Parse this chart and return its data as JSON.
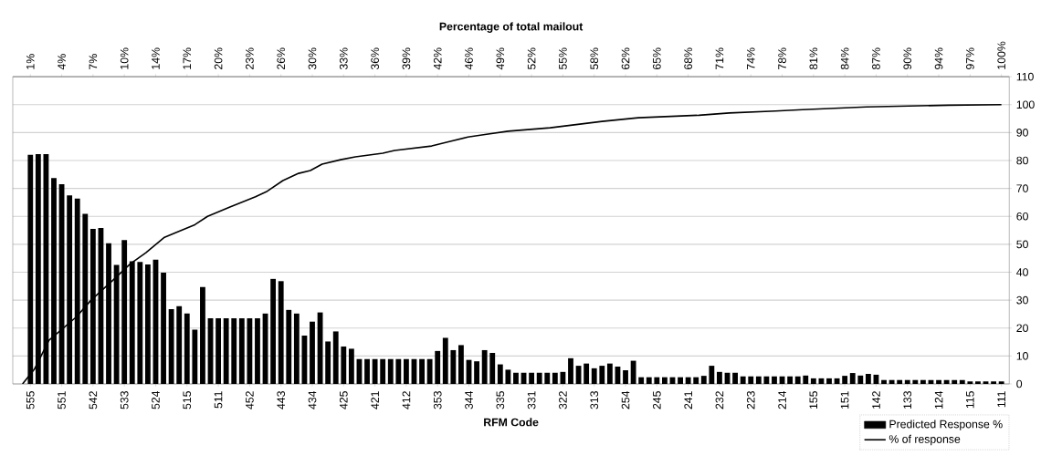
{
  "chart_data": {
    "type": "bar",
    "xlabel": "RFM Code",
    "x2label": "Percentage of total mailout",
    "categories": [
      "555",
      null,
      null,
      null,
      "551",
      null,
      null,
      null,
      "542",
      null,
      null,
      null,
      "533",
      null,
      null,
      null,
      "524",
      null,
      null,
      null,
      "515",
      null,
      null,
      null,
      "511",
      null,
      null,
      null,
      "452",
      null,
      null,
      null,
      "443",
      null,
      null,
      null,
      "434",
      null,
      null,
      null,
      "425",
      null,
      null,
      null,
      "421",
      null,
      null,
      null,
      "412",
      null,
      null,
      null,
      "353",
      null,
      null,
      null,
      "344",
      null,
      null,
      null,
      "335",
      null,
      null,
      null,
      "331",
      null,
      null,
      null,
      "322",
      null,
      null,
      null,
      "313",
      null,
      null,
      null,
      "254",
      null,
      null,
      null,
      "245",
      null,
      null,
      null,
      "241",
      null,
      null,
      null,
      "232",
      null,
      null,
      null,
      "223",
      null,
      null,
      null,
      "214",
      null,
      null,
      null,
      "155",
      null,
      null,
      null,
      "151",
      null,
      null,
      null,
      "142",
      null,
      null,
      null,
      "133",
      null,
      null,
      null,
      "124",
      null,
      null,
      null,
      "115",
      null,
      null,
      null,
      "111"
    ],
    "series": [
      {
        "name": "Predicted Response %",
        "color": "#000000",
        "values": [
          82,
          82.3,
          82.3,
          73.7,
          71.5,
          67.5,
          66.4,
          60.9,
          55.5,
          55.8,
          50.4,
          42.6,
          51.5,
          43.9,
          43.7,
          42.8,
          44.5,
          39.8,
          26.8,
          27.8,
          25.2,
          19.4,
          34.7,
          23.5,
          23.5,
          23.5,
          23.5,
          23.5,
          23.5,
          23.5,
          25.2,
          37.6,
          36.8,
          26.5,
          25.2,
          17.3,
          22.3,
          25.6,
          15.2,
          18.8,
          13.4,
          12.6,
          8.9,
          8.9,
          8.9,
          8.9,
          8.9,
          8.9,
          8.9,
          8.9,
          8.9,
          8.9,
          11.8,
          16.5,
          12.1,
          13.9,
          8.6,
          8.1,
          12.1,
          11.1,
          7.0,
          5.1,
          4.0,
          4.0,
          4.0,
          4.0,
          4.0,
          4.0,
          4.3,
          9.2,
          6.5,
          7.3,
          5.6,
          6.5,
          7.3,
          6.2,
          4.9,
          8.3,
          2.4,
          2.4,
          2.4,
          2.4,
          2.4,
          2.4,
          2.4,
          2.4,
          2.9,
          6.5,
          4.3,
          4.0,
          4.0,
          2.7,
          2.7,
          2.7,
          2.7,
          2.7,
          2.7,
          2.7,
          2.7,
          3.0,
          2.0,
          2.0,
          2.0,
          2.0,
          2.9,
          3.9,
          3.0,
          3.6,
          3.3,
          1.4,
          1.4,
          1.4,
          1.4,
          1.4,
          1.4,
          1.4,
          1.4,
          1.4,
          1.4,
          1.4,
          0.9,
          0.9,
          0.9,
          0.9,
          0.9
        ]
      },
      {
        "name": "% of response",
        "type": "line",
        "color": "#000000",
        "axis": "x2",
        "x": [
          0,
          1.2,
          2.7,
          5.5,
          7.0,
          9.2,
          11.0,
          12.6,
          14.5,
          17.6,
          18.9,
          21.3,
          23.8,
          25.0,
          26.6,
          28.2,
          29.4,
          30.6,
          32.5,
          34.0,
          36.8,
          38.0,
          41.8,
          43.6,
          45.5,
          47.4,
          49.6,
          53.9,
          59.2,
          62.9,
          69.1,
          72.2,
          76.9,
          79.7,
          86.2,
          94.6,
          100
        ],
        "values": [
          0,
          5.2,
          15.6,
          24,
          30,
          37,
          43,
          47,
          52.5,
          57,
          60,
          63.5,
          67,
          69,
          72.8,
          75.4,
          76.4,
          78.7,
          80.3,
          81.3,
          82.6,
          83.6,
          85.2,
          86.8,
          88.4,
          89.4,
          90.5,
          91.7,
          94,
          95.3,
          96.2,
          97,
          97.7,
          98.2,
          99.2,
          99.8,
          100
        ]
      }
    ],
    "ylim": [
      0,
      110
    ],
    "yticks": [
      0,
      10,
      20,
      30,
      40,
      50,
      60,
      70,
      80,
      90,
      100,
      110
    ],
    "x2lim": [
      -1,
      100.8
    ],
    "x2ticks": [
      {
        "value": 0.8,
        "label": "1%"
      },
      {
        "value": 4,
        "label": "4%"
      },
      {
        "value": 7.2,
        "label": "7%"
      },
      {
        "value": 10.4,
        "label": "10%"
      },
      {
        "value": 13.6,
        "label": "14%"
      },
      {
        "value": 16.8,
        "label": "17%"
      },
      {
        "value": 20,
        "label": "20%"
      },
      {
        "value": 23.2,
        "label": "23%"
      },
      {
        "value": 26.4,
        "label": "26%"
      },
      {
        "value": 29.6,
        "label": "30%"
      },
      {
        "value": 32.8,
        "label": "33%"
      },
      {
        "value": 36,
        "label": "36%"
      },
      {
        "value": 39.2,
        "label": "39%"
      },
      {
        "value": 42.4,
        "label": "42%"
      },
      {
        "value": 45.6,
        "label": "46%"
      },
      {
        "value": 48.8,
        "label": "49%"
      },
      {
        "value": 52,
        "label": "52%"
      },
      {
        "value": 55.2,
        "label": "55%"
      },
      {
        "value": 58.4,
        "label": "58%"
      },
      {
        "value": 61.6,
        "label": "62%"
      },
      {
        "value": 64.8,
        "label": "65%"
      },
      {
        "value": 68,
        "label": "68%"
      },
      {
        "value": 71.2,
        "label": "71%"
      },
      {
        "value": 74.4,
        "label": "74%"
      },
      {
        "value": 77.6,
        "label": "78%"
      },
      {
        "value": 80.8,
        "label": "81%"
      },
      {
        "value": 84,
        "label": "84%"
      },
      {
        "value": 87.2,
        "label": "87%"
      },
      {
        "value": 90.4,
        "label": "90%"
      },
      {
        "value": 93.6,
        "label": "94%"
      },
      {
        "value": 96.8,
        "label": "97%"
      },
      {
        "value": 100,
        "label": "100%"
      }
    ],
    "grid": "y",
    "legend": "bottom right"
  }
}
